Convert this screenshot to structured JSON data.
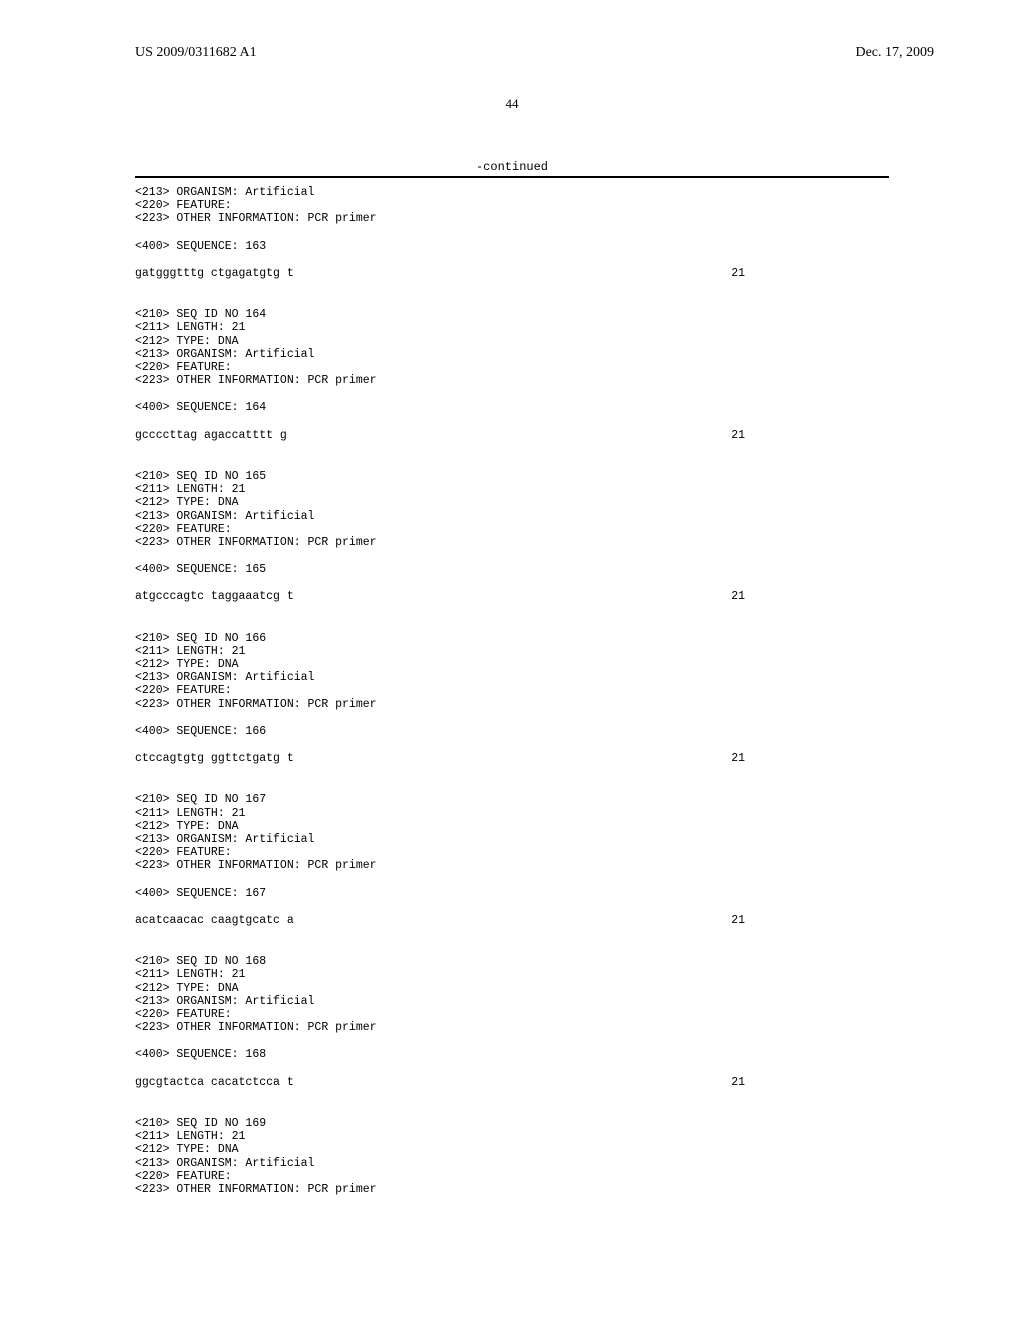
{
  "header": {
    "publication_number": "US 2009/0311682 A1",
    "publication_date": "Dec. 17, 2009"
  },
  "page_number": "44",
  "continued_label": "-continued",
  "sequences": [
    {
      "annotation_lines": [
        "<213> ORGANISM: Artificial",
        "<220> FEATURE:",
        "<223> OTHER INFORMATION: PCR primer"
      ],
      "sequence_header": "<400> SEQUENCE: 163",
      "sequence_data": "gatgggtttg ctgagatgtg t",
      "length_value": "21"
    },
    {
      "annotation_lines": [
        "<210> SEQ ID NO 164",
        "<211> LENGTH: 21",
        "<212> TYPE: DNA",
        "<213> ORGANISM: Artificial",
        "<220> FEATURE:",
        "<223> OTHER INFORMATION: PCR primer"
      ],
      "sequence_header": "<400> SEQUENCE: 164",
      "sequence_data": "gccccttag agaccatttt g",
      "length_value": "21"
    },
    {
      "annotation_lines": [
        "<210> SEQ ID NO 165",
        "<211> LENGTH: 21",
        "<212> TYPE: DNA",
        "<213> ORGANISM: Artificial",
        "<220> FEATURE:",
        "<223> OTHER INFORMATION: PCR primer"
      ],
      "sequence_header": "<400> SEQUENCE: 165",
      "sequence_data": "atgcccagtc taggaaatcg t",
      "length_value": "21"
    },
    {
      "annotation_lines": [
        "<210> SEQ ID NO 166",
        "<211> LENGTH: 21",
        "<212> TYPE: DNA",
        "<213> ORGANISM: Artificial",
        "<220> FEATURE:",
        "<223> OTHER INFORMATION: PCR primer"
      ],
      "sequence_header": "<400> SEQUENCE: 166",
      "sequence_data": "ctccagtgtg ggttctgatg t",
      "length_value": "21"
    },
    {
      "annotation_lines": [
        "<210> SEQ ID NO 167",
        "<211> LENGTH: 21",
        "<212> TYPE: DNA",
        "<213> ORGANISM: Artificial",
        "<220> FEATURE:",
        "<223> OTHER INFORMATION: PCR primer"
      ],
      "sequence_header": "<400> SEQUENCE: 167",
      "sequence_data": "acatcaacac caagtgcatc a",
      "length_value": "21"
    },
    {
      "annotation_lines": [
        "<210> SEQ ID NO 168",
        "<211> LENGTH: 21",
        "<212> TYPE: DNA",
        "<213> ORGANISM: Artificial",
        "<220> FEATURE:",
        "<223> OTHER INFORMATION: PCR primer"
      ],
      "sequence_header": "<400> SEQUENCE: 168",
      "sequence_data": "ggcgtactca cacatctcca t",
      "length_value": "21"
    },
    {
      "annotation_lines": [
        "<210> SEQ ID NO 169",
        "<211> LENGTH: 21",
        "<212> TYPE: DNA",
        "<213> ORGANISM: Artificial",
        "<220> FEATURE:",
        "<223> OTHER INFORMATION: PCR primer"
      ],
      "sequence_header": null,
      "sequence_data": null,
      "length_value": null
    }
  ]
}
